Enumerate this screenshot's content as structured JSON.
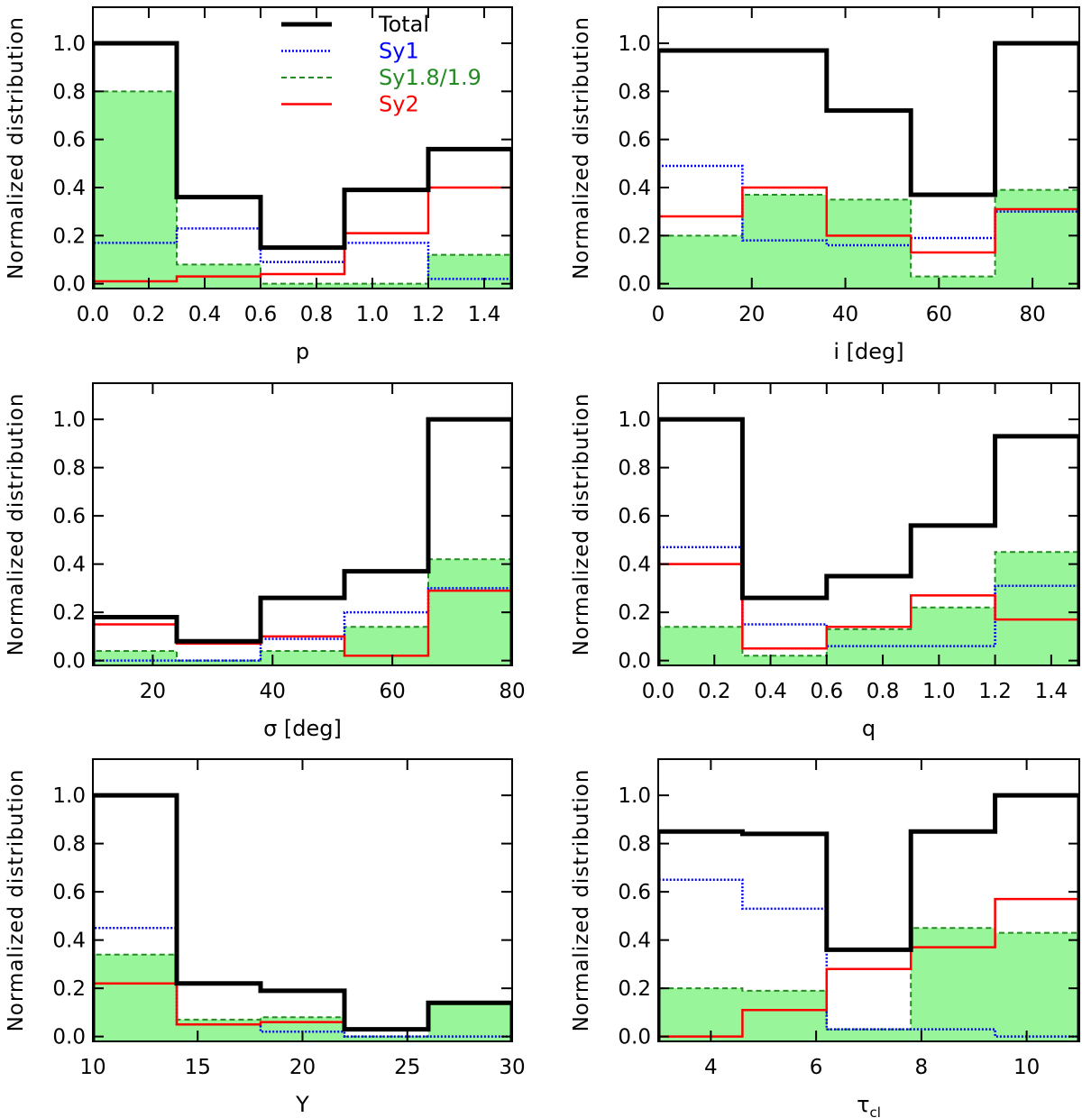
{
  "chart_data": [
    {
      "panel": "p",
      "type": "histogram",
      "xlabel": "p",
      "ylabel": "Normalized distribution",
      "xlim": [
        0.0,
        1.5
      ],
      "ylim": [
        -0.02,
        1.15
      ],
      "xticks": [
        0.0,
        0.2,
        0.4,
        0.6,
        0.8,
        1.0,
        1.2,
        1.4
      ],
      "xtick_labels": [
        "0.0",
        "0.2",
        "0.4",
        "0.6",
        "0.8",
        "1.0",
        "1.2",
        "1.4"
      ],
      "yticks": [
        0.0,
        0.2,
        0.4,
        0.6,
        0.8,
        1.0
      ],
      "ytick_labels": [
        "0.0",
        "0.2",
        "0.4",
        "0.6",
        "0.8",
        "1.0"
      ],
      "bin_edges": [
        0.0,
        0.3,
        0.6,
        0.9,
        1.2,
        1.5
      ],
      "series": [
        {
          "name": "Total",
          "values": [
            1.0,
            0.36,
            0.15,
            0.39,
            0.56
          ]
        },
        {
          "name": "Sy1",
          "values": [
            0.17,
            0.23,
            0.09,
            0.17,
            0.02
          ]
        },
        {
          "name": "Sy1.8/1.9",
          "values": [
            0.8,
            0.08,
            0.0,
            0.0,
            0.12
          ]
        },
        {
          "name": "Sy2",
          "values": [
            0.01,
            0.03,
            0.04,
            0.21,
            0.4
          ]
        }
      ],
      "legend": {
        "position": "top-center",
        "entries": [
          {
            "label": "Total",
            "color": "#000000"
          },
          {
            "label": "Sy1",
            "color": "#0000ff"
          },
          {
            "label": "Sy1.8/1.9",
            "color": "#228b22"
          },
          {
            "label": "Sy2",
            "color": "#ff0000"
          }
        ]
      }
    },
    {
      "panel": "i",
      "type": "histogram",
      "xlabel": "i [deg]",
      "ylabel": "Normalized distribution",
      "xlim": [
        0,
        90
      ],
      "ylim": [
        -0.02,
        1.15
      ],
      "xticks": [
        0,
        20,
        40,
        60,
        80
      ],
      "xtick_labels": [
        "0",
        "20",
        "40",
        "60",
        "80"
      ],
      "yticks": [
        0.0,
        0.2,
        0.4,
        0.6,
        0.8,
        1.0
      ],
      "ytick_labels": [
        "0.0",
        "0.2",
        "0.4",
        "0.6",
        "0.8",
        "1.0"
      ],
      "bin_edges": [
        0,
        18,
        36,
        54,
        72,
        90
      ],
      "series": [
        {
          "name": "Total",
          "values": [
            0.97,
            0.97,
            0.72,
            0.37,
            1.0
          ]
        },
        {
          "name": "Sy1",
          "values": [
            0.49,
            0.18,
            0.16,
            0.19,
            0.3
          ]
        },
        {
          "name": "Sy1.8/1.9",
          "values": [
            0.2,
            0.37,
            0.35,
            0.03,
            0.39
          ]
        },
        {
          "name": "Sy2",
          "values": [
            0.28,
            0.4,
            0.2,
            0.13,
            0.31
          ]
        }
      ]
    },
    {
      "panel": "sigma",
      "type": "histogram",
      "xlabel": "σ [deg]",
      "ylabel": "Normalized distribution",
      "xlim": [
        10,
        80
      ],
      "ylim": [
        -0.02,
        1.15
      ],
      "xticks": [
        20,
        40,
        60,
        80
      ],
      "xtick_labels": [
        "20",
        "40",
        "60",
        "80"
      ],
      "yticks": [
        0.0,
        0.2,
        0.4,
        0.6,
        0.8,
        1.0
      ],
      "ytick_labels": [
        "0.0",
        "0.2",
        "0.4",
        "0.6",
        "0.8",
        "1.0"
      ],
      "bin_edges": [
        10,
        24,
        38,
        52,
        66,
        80
      ],
      "series": [
        {
          "name": "Total",
          "values": [
            0.18,
            0.08,
            0.26,
            0.37,
            1.0
          ]
        },
        {
          "name": "Sy1",
          "values": [
            0.0,
            0.0,
            0.09,
            0.2,
            0.3
          ]
        },
        {
          "name": "Sy1.8/1.9",
          "values": [
            0.04,
            0.0,
            0.04,
            0.14,
            0.42
          ]
        },
        {
          "name": "Sy2",
          "values": [
            0.15,
            0.07,
            0.1,
            0.02,
            0.29
          ]
        }
      ]
    },
    {
      "panel": "q",
      "type": "histogram",
      "xlabel": "q",
      "ylabel": "Normalized distribution",
      "xlim": [
        0.0,
        1.5
      ],
      "ylim": [
        -0.02,
        1.15
      ],
      "xticks": [
        0.0,
        0.2,
        0.4,
        0.6,
        0.8,
        1.0,
        1.2,
        1.4
      ],
      "xtick_labels": [
        "0.0",
        "0.2",
        "0.4",
        "0.6",
        "0.8",
        "1.0",
        "1.2",
        "1.4"
      ],
      "yticks": [
        0.0,
        0.2,
        0.4,
        0.6,
        0.8,
        1.0
      ],
      "ytick_labels": [
        "0.0",
        "0.2",
        "0.4",
        "0.6",
        "0.8",
        "1.0"
      ],
      "bin_edges": [
        0.0,
        0.3,
        0.6,
        0.9,
        1.2,
        1.5
      ],
      "series": [
        {
          "name": "Total",
          "values": [
            1.0,
            0.26,
            0.35,
            0.56,
            0.93
          ]
        },
        {
          "name": "Sy1",
          "values": [
            0.47,
            0.15,
            0.06,
            0.06,
            0.31
          ]
        },
        {
          "name": "Sy1.8/1.9",
          "values": [
            0.14,
            0.02,
            0.13,
            0.22,
            0.45
          ]
        },
        {
          "name": "Sy2",
          "values": [
            0.4,
            0.05,
            0.14,
            0.27,
            0.17
          ]
        }
      ]
    },
    {
      "panel": "Y",
      "type": "histogram",
      "xlabel": "Y",
      "ylabel": "Normalized distribution",
      "xlim": [
        10,
        30
      ],
      "ylim": [
        -0.02,
        1.15
      ],
      "xticks": [
        10,
        15,
        20,
        25,
        30
      ],
      "xtick_labels": [
        "10",
        "15",
        "20",
        "25",
        "30"
      ],
      "yticks": [
        0.0,
        0.2,
        0.4,
        0.6,
        0.8,
        1.0
      ],
      "ytick_labels": [
        "0.0",
        "0.2",
        "0.4",
        "0.6",
        "0.8",
        "1.0"
      ],
      "bin_edges": [
        10,
        14,
        18,
        22,
        26,
        30
      ],
      "series": [
        {
          "name": "Total",
          "values": [
            1.0,
            0.22,
            0.19,
            0.03,
            0.14
          ]
        },
        {
          "name": "Sy1",
          "values": [
            0.45,
            0.05,
            0.02,
            0.0,
            0.0
          ]
        },
        {
          "name": "Sy1.8/1.9",
          "values": [
            0.34,
            0.07,
            0.08,
            0.0,
            0.14
          ]
        },
        {
          "name": "Sy2",
          "values": [
            0.22,
            0.05,
            0.06,
            0.03,
            0.14
          ]
        }
      ]
    },
    {
      "panel": "tau_cl",
      "type": "histogram",
      "xlabel": "τ",
      "xlabel_sub": "cl",
      "ylabel": "Normalized distribution",
      "xlim": [
        3,
        11
      ],
      "ylim": [
        -0.02,
        1.15
      ],
      "xticks": [
        4,
        6,
        8,
        10
      ],
      "xtick_labels": [
        "4",
        "6",
        "8",
        "10"
      ],
      "yticks": [
        0.0,
        0.2,
        0.4,
        0.6,
        0.8,
        1.0
      ],
      "ytick_labels": [
        "0.0",
        "0.2",
        "0.4",
        "0.6",
        "0.8",
        "1.0"
      ],
      "bin_edges": [
        3.0,
        4.6,
        6.2,
        7.8,
        9.4,
        11.0
      ],
      "series": [
        {
          "name": "Total",
          "values": [
            0.85,
            0.84,
            0.36,
            0.85,
            1.0
          ]
        },
        {
          "name": "Sy1",
          "values": [
            0.65,
            0.53,
            0.03,
            0.03,
            0.0
          ]
        },
        {
          "name": "Sy1.8/1.9",
          "values": [
            0.2,
            0.19,
            0.03,
            0.45,
            0.43
          ]
        },
        {
          "name": "Sy2",
          "values": [
            0.0,
            0.11,
            0.28,
            0.37,
            0.57
          ]
        }
      ]
    }
  ],
  "styles": {
    "Total": {
      "color": "#000000"
    },
    "Sy1": {
      "color": "#0000ff"
    },
    "Sy1.8/1.9": {
      "color": "#228b22",
      "fill": "#99f599"
    },
    "Sy2": {
      "color": "#ff0000"
    }
  }
}
